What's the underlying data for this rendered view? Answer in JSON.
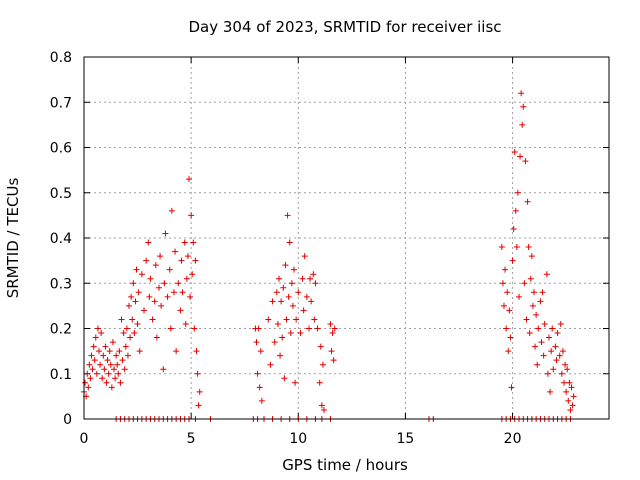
{
  "chart_data": {
    "type": "scatter",
    "title": "Day 304 of 2023, SRMTID for receiver iisc",
    "xlabel": "GPS time / hours",
    "ylabel": "SRMTID / TECUs",
    "xlim": [
      0,
      24.5
    ],
    "ylim": [
      0,
      0.8
    ],
    "xticks": [
      0,
      5,
      10,
      15,
      20
    ],
    "xtick_labels": [
      "0",
      "5",
      "10",
      "15",
      "20"
    ],
    "yticks": [
      0,
      0.1,
      0.2,
      0.3,
      0.4,
      0.5,
      0.6,
      0.7,
      0.8
    ],
    "ytick_labels": [
      "0",
      "0.1",
      "0.2",
      "0.3",
      "0.4",
      "0.5",
      "0.6",
      "0.7",
      "0.8"
    ],
    "grid": true,
    "marker": "+",
    "color": "#e00000",
    "series": [
      {
        "name": "SRMTID",
        "points": [
          [
            0.0,
            0.06
          ],
          [
            0.05,
            0.08
          ],
          [
            0.1,
            0.05
          ],
          [
            0.15,
            0.1
          ],
          [
            0.2,
            0.07
          ],
          [
            0.25,
            0.12
          ],
          [
            0.3,
            0.09
          ],
          [
            0.35,
            0.14
          ],
          [
            0.4,
            0.11
          ],
          [
            0.45,
            0.16
          ],
          [
            0.5,
            0.13
          ],
          [
            0.55,
            0.18
          ],
          [
            0.6,
            0.1
          ],
          [
            0.65,
            0.2
          ],
          [
            0.7,
            0.15
          ],
          [
            0.75,
            0.12
          ],
          [
            0.8,
            0.19
          ],
          [
            0.85,
            0.09
          ],
          [
            0.9,
            0.14
          ],
          [
            0.95,
            0.11
          ],
          [
            1.0,
            0.16
          ],
          [
            1.05,
            0.08
          ],
          [
            1.1,
            0.13
          ],
          [
            1.15,
            0.1
          ],
          [
            1.2,
            0.15
          ],
          [
            1.25,
            0.12
          ],
          [
            1.3,
            0.07
          ],
          [
            1.35,
            0.17
          ],
          [
            1.4,
            0.11
          ],
          [
            1.45,
            0.09
          ],
          [
            1.5,
            0.14
          ],
          [
            1.55,
            0.12
          ],
          [
            1.6,
            0.1
          ],
          [
            1.65,
            0.15
          ],
          [
            1.7,
            0.08
          ],
          [
            1.75,
            0.22
          ],
          [
            1.8,
            0.13
          ],
          [
            1.85,
            0.19
          ],
          [
            1.9,
            0.11
          ],
          [
            1.95,
            0.16
          ],
          [
            2.0,
            0.2
          ],
          [
            2.05,
            0.14
          ],
          [
            2.1,
            0.25
          ],
          [
            2.15,
            0.18
          ],
          [
            2.2,
            0.27
          ],
          [
            2.25,
            0.22
          ],
          [
            2.3,
            0.3
          ],
          [
            2.35,
            0.19
          ],
          [
            2.4,
            0.26
          ],
          [
            2.45,
            0.33
          ],
          [
            2.5,
            0.21
          ],
          [
            2.55,
            0.28
          ],
          [
            2.6,
            0.15
          ],
          [
            2.7,
            0.32
          ],
          [
            2.8,
            0.24
          ],
          [
            2.9,
            0.35
          ],
          [
            3.0,
            0.39
          ],
          [
            3.05,
            0.27
          ],
          [
            3.1,
            0.31
          ],
          [
            3.2,
            0.22
          ],
          [
            3.3,
            0.26
          ],
          [
            3.35,
            0.34
          ],
          [
            3.4,
            0.18
          ],
          [
            3.5,
            0.29
          ],
          [
            3.55,
            0.36
          ],
          [
            3.6,
            0.25
          ],
          [
            3.7,
            0.11
          ],
          [
            3.75,
            0.3
          ],
          [
            3.8,
            0.41
          ],
          [
            3.9,
            0.27
          ],
          [
            4.0,
            0.33
          ],
          [
            4.05,
            0.2
          ],
          [
            4.1,
            0.46
          ],
          [
            4.2,
            0.28
          ],
          [
            4.25,
            0.37
          ],
          [
            4.3,
            0.15
          ],
          [
            4.4,
            0.3
          ],
          [
            4.5,
            0.24
          ],
          [
            4.55,
            0.35
          ],
          [
            4.6,
            0.28
          ],
          [
            4.7,
            0.39
          ],
          [
            4.75,
            0.21
          ],
          [
            4.8,
            0.31
          ],
          [
            4.85,
            0.36
          ],
          [
            4.9,
            0.53
          ],
          [
            4.95,
            0.27
          ],
          [
            5.0,
            0.45
          ],
          [
            5.05,
            0.32
          ],
          [
            5.1,
            0.39
          ],
          [
            5.15,
            0.2
          ],
          [
            5.2,
            0.35
          ],
          [
            5.25,
            0.15
          ],
          [
            5.3,
            0.1
          ],
          [
            5.35,
            0.03
          ],
          [
            5.4,
            0.06
          ],
          [
            8.0,
            0.2
          ],
          [
            8.05,
            0.17
          ],
          [
            8.1,
            0.1
          ],
          [
            8.15,
            0.2
          ],
          [
            8.2,
            0.07
          ],
          [
            8.25,
            0.15
          ],
          [
            8.3,
            0.04
          ],
          [
            8.6,
            0.22
          ],
          [
            8.7,
            0.12
          ],
          [
            8.8,
            0.26
          ],
          [
            8.9,
            0.17
          ],
          [
            9.0,
            0.28
          ],
          [
            9.05,
            0.21
          ],
          [
            9.1,
            0.31
          ],
          [
            9.15,
            0.14
          ],
          [
            9.2,
            0.26
          ],
          [
            9.25,
            0.18
          ],
          [
            9.3,
            0.29
          ],
          [
            9.35,
            0.09
          ],
          [
            9.4,
            0.34
          ],
          [
            9.45,
            0.22
          ],
          [
            9.5,
            0.45
          ],
          [
            9.55,
            0.27
          ],
          [
            9.6,
            0.39
          ],
          [
            9.65,
            0.19
          ],
          [
            9.7,
            0.3
          ],
          [
            9.75,
            0.25
          ],
          [
            9.8,
            0.33
          ],
          [
            9.85,
            0.08
          ],
          [
            9.9,
            0.22
          ],
          [
            10.0,
            0.28
          ],
          [
            10.1,
            0.19
          ],
          [
            10.2,
            0.31
          ],
          [
            10.25,
            0.24
          ],
          [
            10.3,
            0.36
          ],
          [
            10.4,
            0.27
          ],
          [
            10.5,
            0.2
          ],
          [
            10.55,
            0.31
          ],
          [
            10.6,
            0.26
          ],
          [
            10.7,
            0.32
          ],
          [
            10.75,
            0.22
          ],
          [
            10.8,
            0.3
          ],
          [
            10.9,
            0.2
          ],
          [
            11.0,
            0.08
          ],
          [
            11.05,
            0.16
          ],
          [
            11.1,
            0.03
          ],
          [
            11.15,
            0.12
          ],
          [
            11.2,
            0.02
          ],
          [
            11.5,
            0.21
          ],
          [
            11.55,
            0.15
          ],
          [
            11.6,
            0.19
          ],
          [
            11.65,
            0.13
          ],
          [
            11.7,
            0.2
          ],
          [
            19.5,
            0.38
          ],
          [
            19.55,
            0.3
          ],
          [
            19.6,
            0.25
          ],
          [
            19.65,
            0.33
          ],
          [
            19.7,
            0.2
          ],
          [
            19.75,
            0.28
          ],
          [
            19.8,
            0.15
          ],
          [
            19.85,
            0.24
          ],
          [
            19.9,
            0.18
          ],
          [
            19.95,
            0.07
          ],
          [
            20.0,
            0.35
          ],
          [
            20.05,
            0.42
          ],
          [
            20.1,
            0.59
          ],
          [
            20.15,
            0.46
          ],
          [
            20.2,
            0.38
          ],
          [
            20.25,
            0.5
          ],
          [
            20.3,
            0.27
          ],
          [
            20.35,
            0.58
          ],
          [
            20.4,
            0.72
          ],
          [
            20.45,
            0.65
          ],
          [
            20.5,
            0.69
          ],
          [
            20.55,
            0.3
          ],
          [
            20.6,
            0.57
          ],
          [
            20.65,
            0.22
          ],
          [
            20.7,
            0.48
          ],
          [
            20.75,
            0.38
          ],
          [
            20.8,
            0.19
          ],
          [
            20.85,
            0.31
          ],
          [
            20.9,
            0.36
          ],
          [
            20.95,
            0.25
          ],
          [
            21.0,
            0.28
          ],
          [
            21.05,
            0.16
          ],
          [
            21.1,
            0.23
          ],
          [
            21.15,
            0.12
          ],
          [
            21.2,
            0.2
          ],
          [
            21.3,
            0.26
          ],
          [
            21.35,
            0.17
          ],
          [
            21.4,
            0.28
          ],
          [
            21.45,
            0.14
          ],
          [
            21.5,
            0.21
          ],
          [
            21.6,
            0.32
          ],
          [
            21.65,
            0.1
          ],
          [
            21.7,
            0.18
          ],
          [
            21.75,
            0.06
          ],
          [
            21.8,
            0.15
          ],
          [
            21.85,
            0.2
          ],
          [
            21.9,
            0.11
          ],
          [
            22.0,
            0.16
          ],
          [
            22.05,
            0.13
          ],
          [
            22.1,
            0.19
          ],
          [
            22.2,
            0.14
          ],
          [
            22.25,
            0.21
          ],
          [
            22.3,
            0.1
          ],
          [
            22.35,
            0.15
          ],
          [
            22.4,
            0.08
          ],
          [
            22.45,
            0.12
          ],
          [
            22.5,
            0.06
          ],
          [
            22.55,
            0.11
          ],
          [
            22.6,
            0.04
          ],
          [
            22.65,
            0.08
          ],
          [
            22.7,
            0.02
          ],
          [
            22.75,
            0.07
          ],
          [
            22.8,
            0.03
          ],
          [
            22.85,
            0.05
          ],
          [
            1.5,
            0.0
          ],
          [
            1.7,
            0.0
          ],
          [
            1.9,
            0.0
          ],
          [
            2.1,
            0.0
          ],
          [
            2.3,
            0.0
          ],
          [
            2.5,
            0.0
          ],
          [
            2.7,
            0.0
          ],
          [
            2.9,
            0.0
          ],
          [
            3.1,
            0.0
          ],
          [
            3.3,
            0.0
          ],
          [
            3.5,
            0.0
          ],
          [
            3.7,
            0.0
          ],
          [
            3.9,
            0.0
          ],
          [
            4.1,
            0.0
          ],
          [
            4.3,
            0.0
          ],
          [
            4.5,
            0.0
          ],
          [
            4.7,
            0.0
          ],
          [
            4.9,
            0.0
          ],
          [
            5.2,
            0.0
          ],
          [
            5.9,
            0.0
          ],
          [
            7.9,
            0.0
          ],
          [
            8.1,
            0.0
          ],
          [
            8.4,
            0.0
          ],
          [
            8.8,
            0.0
          ],
          [
            9.2,
            0.0
          ],
          [
            9.6,
            0.0
          ],
          [
            10.0,
            0.0
          ],
          [
            10.4,
            0.0
          ],
          [
            10.8,
            0.0
          ],
          [
            11.1,
            0.0
          ],
          [
            11.5,
            0.0
          ],
          [
            16.1,
            0.0
          ],
          [
            16.3,
            0.0
          ],
          [
            19.5,
            0.0
          ],
          [
            19.7,
            0.0
          ],
          [
            19.9,
            0.0
          ],
          [
            20.1,
            0.0
          ],
          [
            20.3,
            0.0
          ],
          [
            20.5,
            0.0
          ],
          [
            20.7,
            0.0
          ],
          [
            20.9,
            0.0
          ],
          [
            21.1,
            0.0
          ],
          [
            21.3,
            0.0
          ],
          [
            21.5,
            0.0
          ],
          [
            21.7,
            0.0
          ],
          [
            21.9,
            0.0
          ],
          [
            22.1,
            0.0
          ],
          [
            22.3,
            0.0
          ],
          [
            22.5,
            0.0
          ],
          [
            22.7,
            0.0
          ]
        ]
      }
    ]
  }
}
